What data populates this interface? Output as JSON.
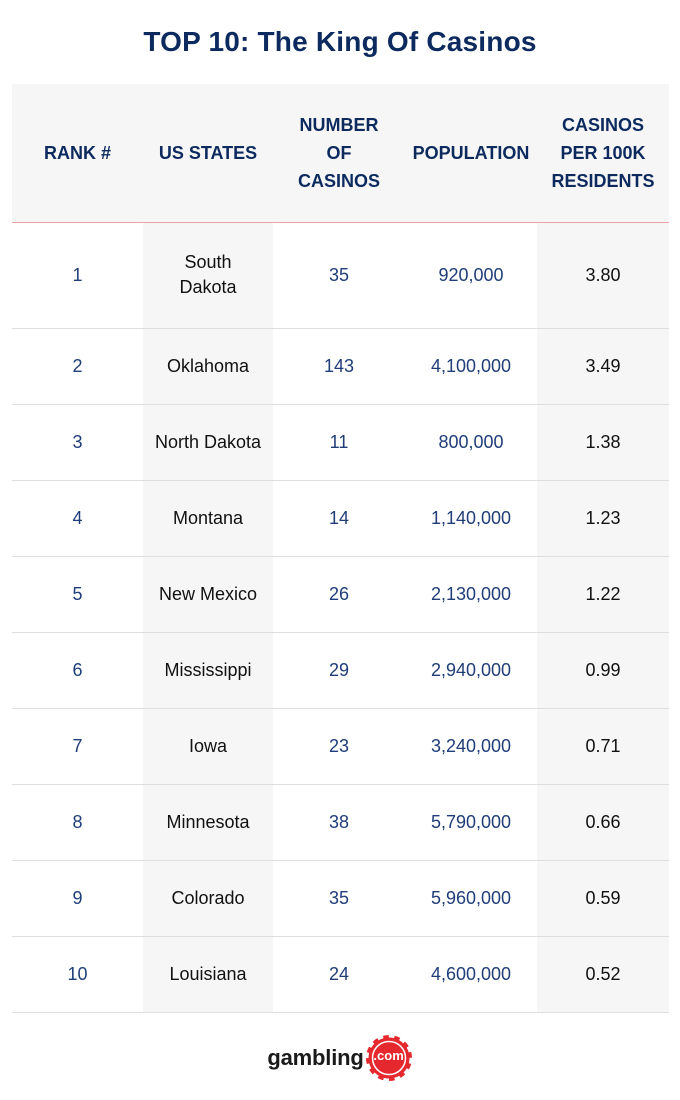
{
  "title": "TOP 10: The King Of Casinos",
  "headers": {
    "rank": "RANK #",
    "state": "US STATES",
    "casinos": "NUMBER\nOF\nCASINOS",
    "population": "POPULATION",
    "per100k": "CASINOS\nPER 100K\nRESIDENTS"
  },
  "rows": [
    {
      "rank": "1",
      "state": "South Dakota",
      "casinos": "35",
      "population": "920,000",
      "per100k": "3.80"
    },
    {
      "rank": "2",
      "state": "Oklahoma",
      "casinos": "143",
      "population": "4,100,000",
      "per100k": "3.49"
    },
    {
      "rank": "3",
      "state": "North Dakota",
      "casinos": "11",
      "population": "800,000",
      "per100k": "1.38"
    },
    {
      "rank": "4",
      "state": "Montana",
      "casinos": "14",
      "population": "1,140,000",
      "per100k": "1.23"
    },
    {
      "rank": "5",
      "state": "New Mexico",
      "casinos": "26",
      "population": "2,130,000",
      "per100k": "1.22"
    },
    {
      "rank": "6",
      "state": "Mississippi",
      "casinos": "29",
      "population": "2,940,000",
      "per100k": "0.99"
    },
    {
      "rank": "7",
      "state": "Iowa",
      "casinos": "23",
      "population": "3,240,000",
      "per100k": "0.71"
    },
    {
      "rank": "8",
      "state": "Minnesota",
      "casinos": "38",
      "population": "5,790,000",
      "per100k": "0.66"
    },
    {
      "rank": "9",
      "state": "Colorado",
      "casinos": "35",
      "population": "5,960,000",
      "per100k": "0.59"
    },
    {
      "rank": "10",
      "state": "Louisiana",
      "casinos": "24",
      "population": "4,600,000",
      "per100k": "0.52"
    }
  ],
  "logo": {
    "word": "gambling",
    "chip_text": ".com",
    "icon": "casino-chip-icon"
  },
  "colors": {
    "title": "#0c2a5e",
    "header_text": "#0c2a5e",
    "numeric_text": "#1f3d79",
    "header_rule": "#e9a3a8",
    "shaded_column": "#f6f6f6",
    "logo_chip": "#e5282d"
  }
}
